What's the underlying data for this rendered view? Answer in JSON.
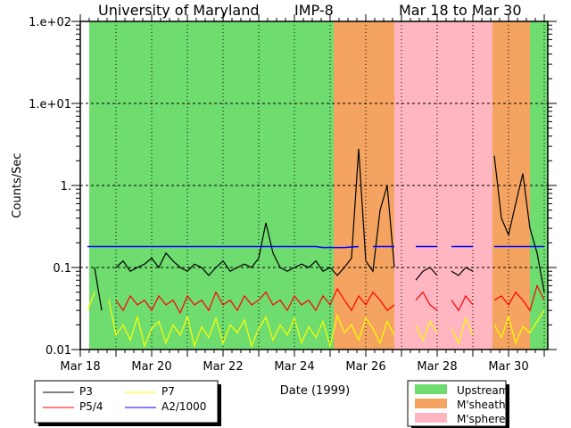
{
  "chart_data": {
    "type": "line",
    "title_parts": [
      "University of Maryland",
      "IMP-8",
      "Mar 18 to Mar 30"
    ],
    "xlabel": "Date (1999)",
    "ylabel": "Counts/Sec",
    "x_units": "days since Mar 18 1999",
    "xlim": [
      0,
      13.1
    ],
    "ylim": [
      0.01,
      100
    ],
    "yscale": "log",
    "x_tick_labels": [
      {
        "t": 0,
        "label": "Mar 18"
      },
      {
        "t": 2,
        "label": "Mar 20"
      },
      {
        "t": 4,
        "label": "Mar 22"
      },
      {
        "t": 6,
        "label": "Mar 24"
      },
      {
        "t": 8,
        "label": "Mar 26"
      },
      {
        "t": 10,
        "label": "Mar 28"
      },
      {
        "t": 12,
        "label": "Mar 30"
      }
    ],
    "y_tick_labels": [
      {
        "v": 100,
        "label": "1.e+02"
      },
      {
        "v": 10,
        "label": "1.e+01"
      },
      {
        "v": 1,
        "label": "1."
      },
      {
        "v": 0.1,
        "label": "0.1"
      },
      {
        "v": 0.01,
        "label": "0.01"
      }
    ],
    "grid": true,
    "regions": [
      {
        "name": "Upstream",
        "start": 0.25,
        "end": 7.1,
        "color": "#6fdc6f"
      },
      {
        "name": "M'sheath",
        "start": 7.1,
        "end": 8.8,
        "color": "#f4a460"
      },
      {
        "name": "M'sphere",
        "start": 8.8,
        "end": 11.55,
        "color": "#ffb6c1"
      },
      {
        "name": "M'sheath",
        "start": 11.55,
        "end": 12.6,
        "color": "#f4a460"
      },
      {
        "name": "Upstream",
        "start": 12.6,
        "end": 13.1,
        "color": "#6fdc6f"
      }
    ],
    "t_start": 0.2,
    "t_step": 0.2,
    "series": [
      {
        "name": "P3",
        "color": "#000000",
        "values": [
          null,
          0.1,
          0.03,
          null,
          0.1,
          0.12,
          0.09,
          0.1,
          0.11,
          0.13,
          0.1,
          0.15,
          0.12,
          0.1,
          0.09,
          0.11,
          0.1,
          0.08,
          0.1,
          0.12,
          0.09,
          0.1,
          0.11,
          0.1,
          0.13,
          0.35,
          0.15,
          0.1,
          0.09,
          0.1,
          0.11,
          0.1,
          0.12,
          0.09,
          0.1,
          0.08,
          0.1,
          0.13,
          2.8,
          0.12,
          0.09,
          0.5,
          1.0,
          0.1,
          null,
          null,
          0.07,
          0.09,
          0.1,
          0.08,
          null,
          0.09,
          0.08,
          0.1,
          0.09,
          null,
          null,
          2.3,
          0.4,
          0.25,
          0.6,
          1.4,
          0.3,
          0.15,
          0.05
        ]
      },
      {
        "name": "P5/4",
        "color": "#ff0000",
        "values": [
          null,
          null,
          null,
          null,
          0.04,
          0.03,
          0.045,
          0.035,
          0.04,
          0.03,
          0.045,
          0.035,
          0.04,
          0.028,
          0.045,
          0.035,
          0.04,
          0.03,
          0.05,
          0.035,
          0.04,
          0.03,
          0.045,
          0.035,
          0.04,
          0.05,
          0.035,
          0.04,
          0.03,
          0.045,
          0.035,
          0.04,
          0.03,
          0.045,
          0.035,
          0.055,
          0.04,
          0.03,
          0.045,
          0.035,
          0.05,
          0.04,
          0.03,
          0.035,
          null,
          null,
          0.04,
          0.05,
          0.035,
          0.03,
          null,
          0.04,
          0.03,
          0.045,
          0.035,
          null,
          null,
          0.04,
          0.045,
          0.035,
          0.05,
          0.04,
          0.03,
          0.06,
          0.04
        ]
      },
      {
        "name": "P7",
        "color": "#ffff00",
        "values": [
          0.03,
          0.05,
          null,
          0.04,
          0.015,
          0.02,
          0.013,
          0.025,
          0.011,
          0.018,
          0.022,
          0.012,
          0.02,
          0.015,
          0.025,
          0.011,
          0.019,
          0.014,
          0.024,
          0.012,
          0.02,
          0.016,
          0.023,
          0.011,
          0.018,
          0.025,
          0.013,
          0.02,
          0.015,
          0.024,
          0.012,
          0.019,
          0.014,
          0.022,
          0.011,
          0.026,
          0.016,
          0.02,
          0.013,
          0.024,
          0.018,
          0.012,
          0.022,
          0.015,
          null,
          null,
          0.02,
          0.013,
          0.022,
          0.016,
          null,
          0.018,
          0.012,
          0.024,
          0.015,
          null,
          null,
          0.02,
          0.014,
          0.025,
          0.012,
          0.019,
          0.016,
          0.022,
          0.03
        ]
      },
      {
        "name": "A2/1000",
        "color": "#0000ff",
        "values": [
          0.18,
          0.18,
          0.18,
          0.18,
          0.18,
          0.18,
          0.18,
          0.18,
          0.18,
          0.18,
          0.18,
          0.18,
          0.18,
          0.18,
          0.18,
          0.18,
          0.18,
          0.18,
          0.18,
          0.18,
          0.18,
          0.18,
          0.18,
          0.18,
          0.18,
          0.18,
          0.18,
          0.18,
          0.18,
          0.18,
          0.18,
          0.18,
          0.18,
          0.175,
          0.175,
          0.175,
          0.175,
          0.178,
          0.18,
          null,
          0.18,
          0.18,
          0.18,
          0.18,
          null,
          null,
          0.18,
          0.18,
          0.18,
          0.18,
          null,
          0.18,
          0.18,
          0.18,
          0.18,
          null,
          null,
          0.18,
          0.18,
          0.18,
          0.18,
          0.18,
          0.18,
          0.18,
          0.18
        ]
      }
    ],
    "legend_series_placement": "bottom-left",
    "legend_regions_placement": "bottom-right",
    "legend_regions": [
      {
        "label": "Upstream",
        "color": "#6fdc6f"
      },
      {
        "label": "M'sheath",
        "color": "#f4a460"
      },
      {
        "label": "M'sphere",
        "color": "#ffb6c1"
      }
    ]
  }
}
